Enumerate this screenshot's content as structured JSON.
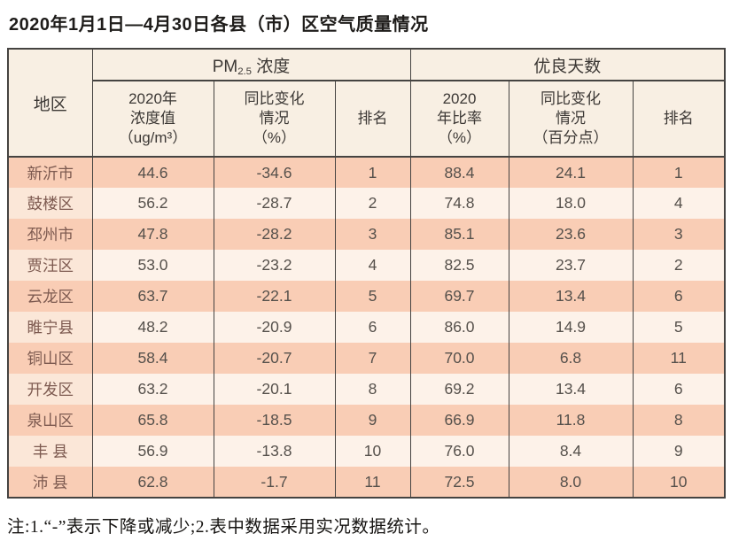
{
  "title": "2020年1月1日—4月30日各县（市）区空气质量情况",
  "table": {
    "corner_header": "地区",
    "group_headers": {
      "pm25": {
        "prefix": "PM",
        "sub": "2.5",
        "suffix": " 浓度"
      },
      "good_days": "优良天数"
    },
    "col_headers": [
      "2020年\n浓度值\n（ug/m³）",
      "同比变化\n情况\n（%）",
      "排名",
      "2020\n年比率\n（%）",
      "同比变化\n情况\n（百分点）",
      "排名"
    ],
    "rows": [
      [
        "新沂市",
        "44.6",
        "-34.6",
        "1",
        "88.4",
        "24.1",
        "1"
      ],
      [
        "鼓楼区",
        "56.2",
        "-28.7",
        "2",
        "74.8",
        "18.0",
        "4"
      ],
      [
        "邳州市",
        "47.8",
        "-28.2",
        "3",
        "85.1",
        "23.6",
        "3"
      ],
      [
        "贾汪区",
        "53.0",
        "-23.2",
        "4",
        "82.5",
        "23.7",
        "2"
      ],
      [
        "云龙区",
        "63.7",
        "-22.1",
        "5",
        "69.7",
        "13.4",
        "6"
      ],
      [
        "睢宁县",
        "48.2",
        "-20.9",
        "6",
        "86.0",
        "14.9",
        "5"
      ],
      [
        "铜山区",
        "58.4",
        "-20.7",
        "7",
        "70.0",
        "6.8",
        "11"
      ],
      [
        "开发区",
        "63.2",
        "-20.1",
        "8",
        "69.2",
        "13.4",
        "6"
      ],
      [
        "泉山区",
        "65.8",
        "-18.5",
        "9",
        "66.9",
        "11.8",
        "8"
      ],
      [
        "丰 县",
        "56.9",
        "-13.8",
        "10",
        "76.0",
        "8.4",
        "9"
      ],
      [
        "沛 县",
        "62.8",
        "-1.7",
        "11",
        "72.5",
        "8.0",
        "10"
      ]
    ]
  },
  "footnote": "注:1.“-”表示下降或减少;2.表中数据采用实况数据统计。",
  "colors": {
    "row_odd_bg": "#f9cdb5",
    "row_even_bg": "#fdf2e9",
    "header_bg": "#f8efe3",
    "border": "#454341",
    "region_text": "#7d5a50",
    "value_text": "#55504b"
  }
}
